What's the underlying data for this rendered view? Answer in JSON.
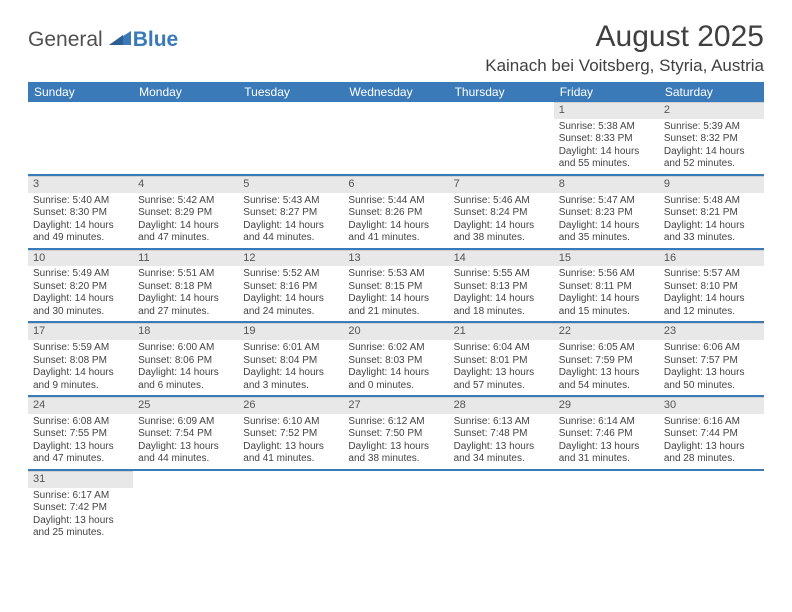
{
  "logo": {
    "part1": "General",
    "part2": "Blue"
  },
  "title": "August 2025",
  "location": "Kainach bei Voitsberg, Styria, Austria",
  "header_bg": "#3a7ab8",
  "header_fg": "#ffffff",
  "daynum_bg": "#e8e8e8",
  "row_border": "#3a7ab8",
  "dayHeaders": [
    "Sunday",
    "Monday",
    "Tuesday",
    "Wednesday",
    "Thursday",
    "Friday",
    "Saturday"
  ],
  "weeks": [
    [
      null,
      null,
      null,
      null,
      null,
      {
        "n": "1",
        "sr": "Sunrise: 5:38 AM",
        "ss": "Sunset: 8:33 PM",
        "d1": "Daylight: 14 hours",
        "d2": "and 55 minutes."
      },
      {
        "n": "2",
        "sr": "Sunrise: 5:39 AM",
        "ss": "Sunset: 8:32 PM",
        "d1": "Daylight: 14 hours",
        "d2": "and 52 minutes."
      }
    ],
    [
      {
        "n": "3",
        "sr": "Sunrise: 5:40 AM",
        "ss": "Sunset: 8:30 PM",
        "d1": "Daylight: 14 hours",
        "d2": "and 49 minutes."
      },
      {
        "n": "4",
        "sr": "Sunrise: 5:42 AM",
        "ss": "Sunset: 8:29 PM",
        "d1": "Daylight: 14 hours",
        "d2": "and 47 minutes."
      },
      {
        "n": "5",
        "sr": "Sunrise: 5:43 AM",
        "ss": "Sunset: 8:27 PM",
        "d1": "Daylight: 14 hours",
        "d2": "and 44 minutes."
      },
      {
        "n": "6",
        "sr": "Sunrise: 5:44 AM",
        "ss": "Sunset: 8:26 PM",
        "d1": "Daylight: 14 hours",
        "d2": "and 41 minutes."
      },
      {
        "n": "7",
        "sr": "Sunrise: 5:46 AM",
        "ss": "Sunset: 8:24 PM",
        "d1": "Daylight: 14 hours",
        "d2": "and 38 minutes."
      },
      {
        "n": "8",
        "sr": "Sunrise: 5:47 AM",
        "ss": "Sunset: 8:23 PM",
        "d1": "Daylight: 14 hours",
        "d2": "and 35 minutes."
      },
      {
        "n": "9",
        "sr": "Sunrise: 5:48 AM",
        "ss": "Sunset: 8:21 PM",
        "d1": "Daylight: 14 hours",
        "d2": "and 33 minutes."
      }
    ],
    [
      {
        "n": "10",
        "sr": "Sunrise: 5:49 AM",
        "ss": "Sunset: 8:20 PM",
        "d1": "Daylight: 14 hours",
        "d2": "and 30 minutes."
      },
      {
        "n": "11",
        "sr": "Sunrise: 5:51 AM",
        "ss": "Sunset: 8:18 PM",
        "d1": "Daylight: 14 hours",
        "d2": "and 27 minutes."
      },
      {
        "n": "12",
        "sr": "Sunrise: 5:52 AM",
        "ss": "Sunset: 8:16 PM",
        "d1": "Daylight: 14 hours",
        "d2": "and 24 minutes."
      },
      {
        "n": "13",
        "sr": "Sunrise: 5:53 AM",
        "ss": "Sunset: 8:15 PM",
        "d1": "Daylight: 14 hours",
        "d2": "and 21 minutes."
      },
      {
        "n": "14",
        "sr": "Sunrise: 5:55 AM",
        "ss": "Sunset: 8:13 PM",
        "d1": "Daylight: 14 hours",
        "d2": "and 18 minutes."
      },
      {
        "n": "15",
        "sr": "Sunrise: 5:56 AM",
        "ss": "Sunset: 8:11 PM",
        "d1": "Daylight: 14 hours",
        "d2": "and 15 minutes."
      },
      {
        "n": "16",
        "sr": "Sunrise: 5:57 AM",
        "ss": "Sunset: 8:10 PM",
        "d1": "Daylight: 14 hours",
        "d2": "and 12 minutes."
      }
    ],
    [
      {
        "n": "17",
        "sr": "Sunrise: 5:59 AM",
        "ss": "Sunset: 8:08 PM",
        "d1": "Daylight: 14 hours",
        "d2": "and 9 minutes."
      },
      {
        "n": "18",
        "sr": "Sunrise: 6:00 AM",
        "ss": "Sunset: 8:06 PM",
        "d1": "Daylight: 14 hours",
        "d2": "and 6 minutes."
      },
      {
        "n": "19",
        "sr": "Sunrise: 6:01 AM",
        "ss": "Sunset: 8:04 PM",
        "d1": "Daylight: 14 hours",
        "d2": "and 3 minutes."
      },
      {
        "n": "20",
        "sr": "Sunrise: 6:02 AM",
        "ss": "Sunset: 8:03 PM",
        "d1": "Daylight: 14 hours",
        "d2": "and 0 minutes."
      },
      {
        "n": "21",
        "sr": "Sunrise: 6:04 AM",
        "ss": "Sunset: 8:01 PM",
        "d1": "Daylight: 13 hours",
        "d2": "and 57 minutes."
      },
      {
        "n": "22",
        "sr": "Sunrise: 6:05 AM",
        "ss": "Sunset: 7:59 PM",
        "d1": "Daylight: 13 hours",
        "d2": "and 54 minutes."
      },
      {
        "n": "23",
        "sr": "Sunrise: 6:06 AM",
        "ss": "Sunset: 7:57 PM",
        "d1": "Daylight: 13 hours",
        "d2": "and 50 minutes."
      }
    ],
    [
      {
        "n": "24",
        "sr": "Sunrise: 6:08 AM",
        "ss": "Sunset: 7:55 PM",
        "d1": "Daylight: 13 hours",
        "d2": "and 47 minutes."
      },
      {
        "n": "25",
        "sr": "Sunrise: 6:09 AM",
        "ss": "Sunset: 7:54 PM",
        "d1": "Daylight: 13 hours",
        "d2": "and 44 minutes."
      },
      {
        "n": "26",
        "sr": "Sunrise: 6:10 AM",
        "ss": "Sunset: 7:52 PM",
        "d1": "Daylight: 13 hours",
        "d2": "and 41 minutes."
      },
      {
        "n": "27",
        "sr": "Sunrise: 6:12 AM",
        "ss": "Sunset: 7:50 PM",
        "d1": "Daylight: 13 hours",
        "d2": "and 38 minutes."
      },
      {
        "n": "28",
        "sr": "Sunrise: 6:13 AM",
        "ss": "Sunset: 7:48 PM",
        "d1": "Daylight: 13 hours",
        "d2": "and 34 minutes."
      },
      {
        "n": "29",
        "sr": "Sunrise: 6:14 AM",
        "ss": "Sunset: 7:46 PM",
        "d1": "Daylight: 13 hours",
        "d2": "and 31 minutes."
      },
      {
        "n": "30",
        "sr": "Sunrise: 6:16 AM",
        "ss": "Sunset: 7:44 PM",
        "d1": "Daylight: 13 hours",
        "d2": "and 28 minutes."
      }
    ],
    [
      {
        "n": "31",
        "sr": "Sunrise: 6:17 AM",
        "ss": "Sunset: 7:42 PM",
        "d1": "Daylight: 13 hours",
        "d2": "and 25 minutes."
      },
      null,
      null,
      null,
      null,
      null,
      null
    ]
  ]
}
